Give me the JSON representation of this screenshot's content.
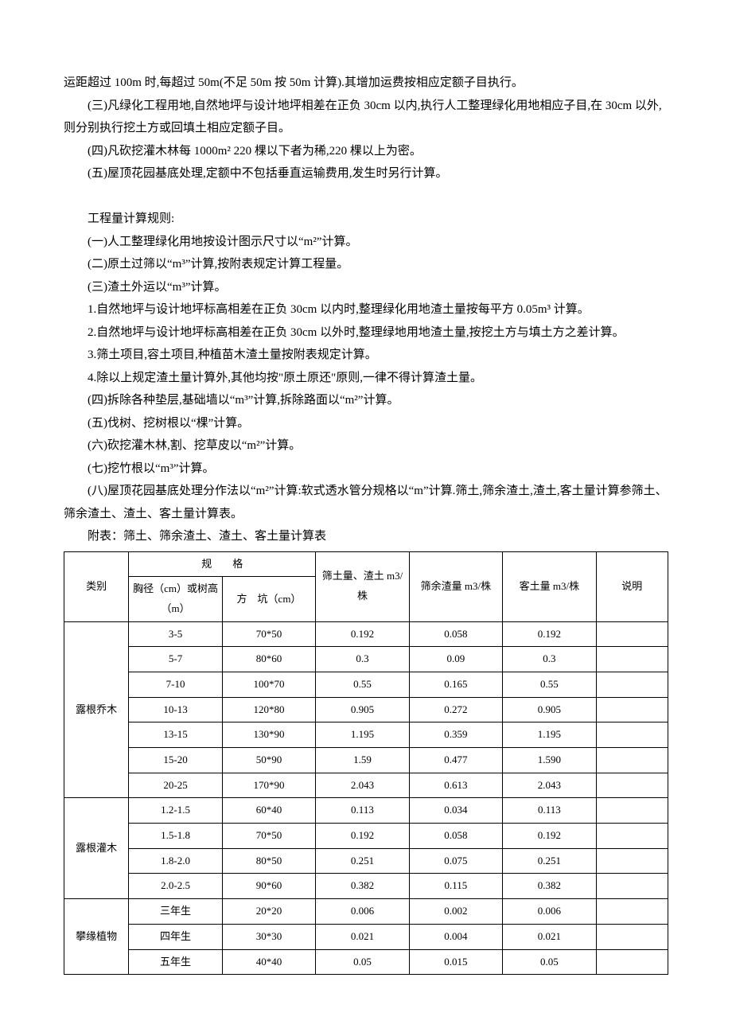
{
  "paragraphs": [
    "运距超过 100m 时,每超过 50m(不足 50m 按 50m 计算).其增加运费按相应定额子目执行。",
    "(三)凡绿化工程用地,自然地坪与设计地坪相差在正负 30cm 以内,执行人工整理绿化用地相应子目,在 30cm 以外,则分别执行挖土方或回填土相应定额子目。",
    "(四)凡砍挖灌木林每 1000m² 220 棵以下者为稀,220 棵以上为密。",
    "(五)屋顶花园基底处理,定额中不包括垂直运输费用,发生时另行计算。"
  ],
  "section2": [
    "工程量计算规则:",
    "(一)人工整理绿化用地按设计图示尺寸以“m²”计算。",
    "(二)原土过筛以“m³”计算,按附表规定计算工程量。",
    "(三)渣土外运以“m³”计算。",
    "1.自然地坪与设计地坪标高相差在正负 30cm 以内时,整理绿化用地渣土量按每平方 0.05m³ 计算。",
    "2.自然地坪与设计地坪标高相差在正负 30cm 以外时,整理绿地用地渣土量,按挖土方与填土方之差计算。",
    "3.筛土项目,容土项目,种植苗木渣土量按附表规定计算。",
    "4.除以上规定渣土量计算外,其他均按\"原土原还\"原则,一律不得计算渣土量。",
    "(四)拆除各种垫层,基础墙以“m³”计算,拆除路面以“m²”计算。",
    "(五)伐树、挖树根以“棵”计算。",
    "(六)砍挖灌木林,割、挖草皮以“m²”计算。",
    "(七)挖竹根以“m³”计算。",
    "(八)屋顶花园基底处理分作法以“m²”计算:软式透水管分规格以“m”计算.筛土,筛余渣土,渣土,客土量计算参筛土、筛余渣土、渣土、客土量计算表。",
    "附表：筛土、筛余渣土、渣土、客土量计算表"
  ],
  "table": {
    "header": {
      "cat": "类别",
      "spec_group": "规　　格",
      "spec_a": "胸径（cm）或树高（m）",
      "spec_b": "方　坑（cm）",
      "v1": "筛土量、渣土 m3/株",
      "v2": "筛余渣量 m3/株",
      "v3": "客土量 m3/株",
      "remark": "说明"
    },
    "groups": [
      {
        "name": "露根乔木",
        "rows": [
          [
            "3-5",
            "70*50",
            "0.192",
            "0.058",
            "0.192",
            ""
          ],
          [
            "5-7",
            "80*60",
            "0.3",
            "0.09",
            "0.3",
            ""
          ],
          [
            "7-10",
            "100*70",
            "0.55",
            "0.165",
            "0.55",
            ""
          ],
          [
            "10-13",
            "120*80",
            "0.905",
            "0.272",
            "0.905",
            ""
          ],
          [
            "13-15",
            "130*90",
            "1.195",
            "0.359",
            "1.195",
            ""
          ],
          [
            "15-20",
            "50*90",
            "1.59",
            "0.477",
            "1.590",
            ""
          ],
          [
            "20-25",
            "170*90",
            "2.043",
            "0.613",
            "2.043",
            ""
          ]
        ]
      },
      {
        "name": "露根灌木",
        "rows": [
          [
            "1.2-1.5",
            "60*40",
            "0.113",
            "0.034",
            "0.113",
            ""
          ],
          [
            "1.5-1.8",
            "70*50",
            "0.192",
            "0.058",
            "0.192",
            ""
          ],
          [
            "1.8-2.0",
            "80*50",
            "0.251",
            "0.075",
            "0.251",
            ""
          ],
          [
            "2.0-2.5",
            "90*60",
            "0.382",
            "0.115",
            "0.382",
            ""
          ]
        ]
      },
      {
        "name": "攀缘植物",
        "rows": [
          [
            "三年生",
            "20*20",
            "0.006",
            "0.002",
            "0.006",
            ""
          ],
          [
            "四年生",
            "30*30",
            "0.021",
            "0.004",
            "0.021",
            ""
          ],
          [
            "五年生",
            "40*40",
            "0.05",
            "0.015",
            "0.05",
            ""
          ]
        ]
      }
    ]
  }
}
